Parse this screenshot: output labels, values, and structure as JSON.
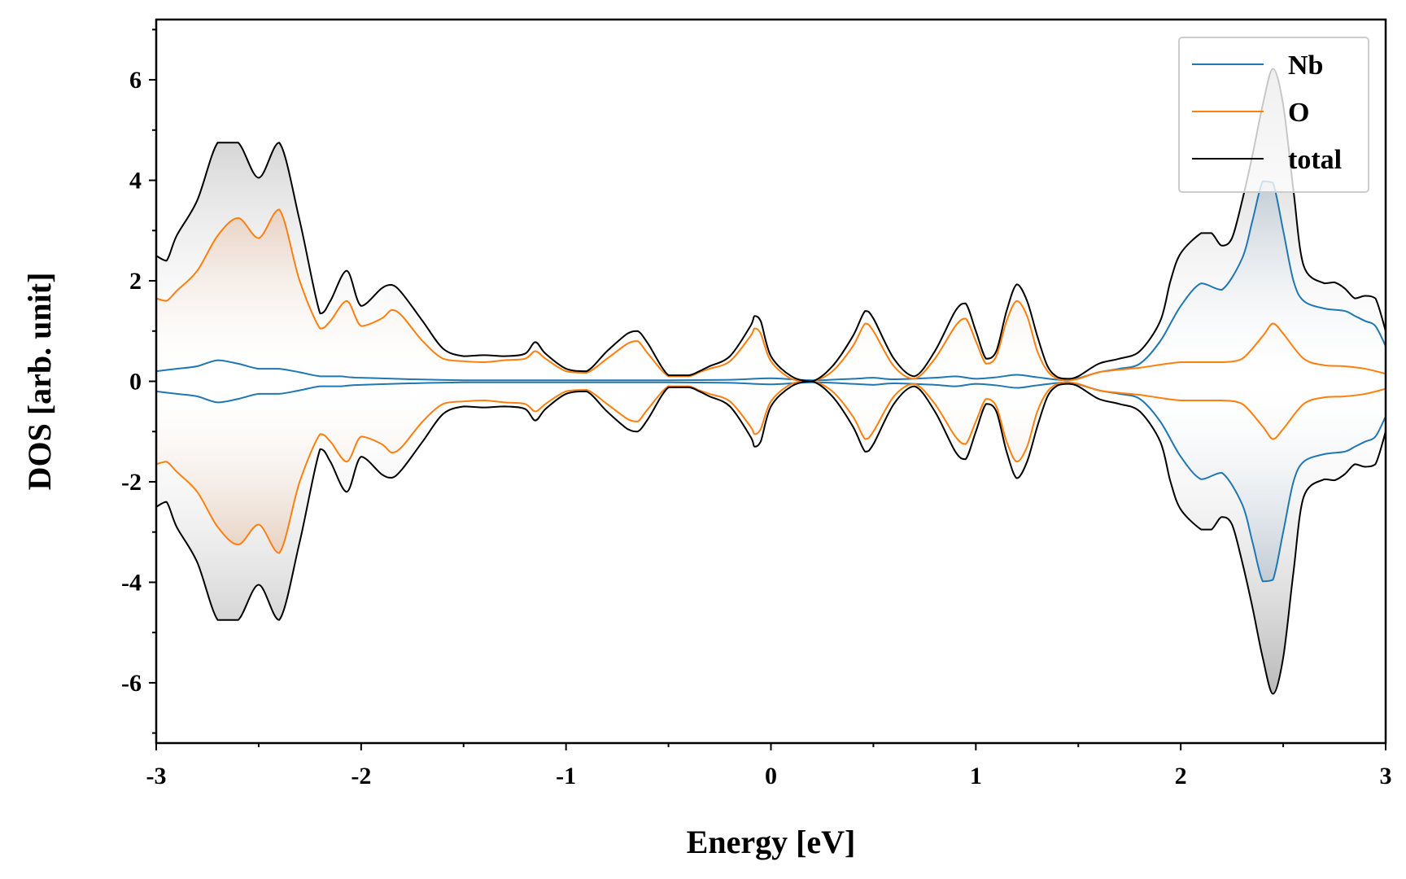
{
  "chart_data": {
    "type": "area",
    "xlabel": "Energy [eV]",
    "ylabel": "DOS [arb. unit]",
    "xlim": [
      -3,
      3
    ],
    "ylim": [
      -7.2,
      7.2
    ],
    "x_ticks": [
      -3,
      -2,
      -1,
      0,
      1,
      2,
      3
    ],
    "x_tick_labels": [
      "-3",
      "-2",
      "-1",
      "0",
      "1",
      "2",
      "3"
    ],
    "y_ticks": [
      -6,
      -4,
      -2,
      0,
      2,
      4,
      6
    ],
    "y_tick_labels": [
      "-6",
      "-4",
      "-2",
      "0",
      "2",
      "4",
      "6"
    ],
    "grid": false,
    "legend": {
      "position": "top-right",
      "entries": [
        "Nb",
        "O",
        "total"
      ]
    },
    "symmetric": true,
    "series": [
      {
        "name": "Nb",
        "color": "#1f77b4",
        "fill_color": "#4a6f8f",
        "x": [
          -3.0,
          -2.9,
          -2.8,
          -2.7,
          -2.6,
          -2.5,
          -2.4,
          -2.3,
          -2.2,
          -2.1,
          -2.0,
          -1.5,
          -1.0,
          -0.5,
          -0.2,
          0.0,
          0.2,
          0.4,
          0.5,
          0.6,
          0.8,
          0.9,
          1.0,
          1.1,
          1.2,
          1.3,
          1.45,
          1.6,
          1.7,
          1.8,
          1.9,
          2.0,
          2.1,
          2.2,
          2.3,
          2.35,
          2.4,
          2.45,
          2.5,
          2.55,
          2.6,
          2.7,
          2.8,
          2.85,
          2.9,
          2.95,
          3.0
        ],
        "values": [
          0.2,
          0.25,
          0.3,
          0.42,
          0.35,
          0.25,
          0.25,
          0.18,
          0.1,
          0.1,
          0.07,
          0.02,
          0.02,
          0.02,
          0.03,
          0.06,
          0.02,
          0.05,
          0.07,
          0.04,
          0.07,
          0.1,
          0.05,
          0.08,
          0.13,
          0.08,
          0.02,
          0.18,
          0.25,
          0.35,
          0.8,
          1.5,
          1.95,
          1.82,
          2.45,
          3.2,
          3.98,
          3.95,
          3.0,
          2.0,
          1.6,
          1.45,
          1.4,
          1.3,
          1.2,
          1.1,
          0.7
        ]
      },
      {
        "name": "O",
        "color": "#ff7f0e",
        "fill_color": "#c8651e",
        "x": [
          -3.0,
          -2.95,
          -2.9,
          -2.8,
          -2.7,
          -2.6,
          -2.5,
          -2.4,
          -2.3,
          -2.2,
          -2.15,
          -2.07,
          -2.0,
          -1.9,
          -1.85,
          -1.8,
          -1.7,
          -1.6,
          -1.5,
          -1.4,
          -1.3,
          -1.2,
          -1.15,
          -1.1,
          -1.0,
          -0.9,
          -0.8,
          -0.7,
          -0.65,
          -0.6,
          -0.5,
          -0.4,
          -0.35,
          -0.3,
          -0.2,
          -0.1,
          -0.08,
          -0.05,
          0.0,
          0.1,
          0.2,
          0.3,
          0.4,
          0.46,
          0.5,
          0.6,
          0.7,
          0.8,
          0.9,
          0.95,
          1.0,
          1.05,
          1.1,
          1.15,
          1.2,
          1.25,
          1.3,
          1.35,
          1.4,
          1.45,
          1.5,
          1.6,
          1.7,
          1.8,
          1.9,
          2.0,
          2.1,
          2.2,
          2.3,
          2.4,
          2.45,
          2.5,
          2.6,
          2.7,
          2.8,
          2.9,
          3.0
        ],
        "values": [
          1.65,
          1.6,
          1.8,
          2.2,
          2.9,
          3.25,
          2.85,
          3.42,
          2.0,
          1.05,
          1.2,
          1.6,
          1.1,
          1.25,
          1.42,
          1.3,
          0.8,
          0.45,
          0.4,
          0.38,
          0.42,
          0.45,
          0.6,
          0.45,
          0.2,
          0.17,
          0.45,
          0.75,
          0.8,
          0.55,
          0.1,
          0.1,
          0.18,
          0.25,
          0.4,
          0.9,
          1.05,
          0.95,
          0.4,
          0.05,
          0.0,
          0.2,
          0.7,
          1.15,
          1.0,
          0.3,
          0.05,
          0.45,
          1.1,
          1.25,
          0.8,
          0.35,
          0.5,
          1.2,
          1.6,
          1.3,
          0.6,
          0.2,
          0.05,
          0.02,
          0.05,
          0.18,
          0.23,
          0.27,
          0.33,
          0.38,
          0.38,
          0.38,
          0.45,
          0.9,
          1.15,
          0.95,
          0.45,
          0.32,
          0.3,
          0.25,
          0.15
        ]
      },
      {
        "name": "total",
        "color": "#000000",
        "fill_color": "#8c8c8c",
        "x": [
          -3.0,
          -2.95,
          -2.9,
          -2.8,
          -2.7,
          -2.6,
          -2.5,
          -2.4,
          -2.3,
          -2.2,
          -2.15,
          -2.07,
          -2.0,
          -1.9,
          -1.85,
          -1.8,
          -1.7,
          -1.6,
          -1.5,
          -1.4,
          -1.3,
          -1.2,
          -1.15,
          -1.1,
          -1.0,
          -0.9,
          -0.8,
          -0.7,
          -0.65,
          -0.6,
          -0.5,
          -0.4,
          -0.35,
          -0.3,
          -0.2,
          -0.1,
          -0.08,
          -0.05,
          0.0,
          0.1,
          0.2,
          0.3,
          0.4,
          0.46,
          0.5,
          0.6,
          0.7,
          0.8,
          0.9,
          0.95,
          1.0,
          1.05,
          1.1,
          1.15,
          1.2,
          1.25,
          1.3,
          1.35,
          1.4,
          1.45,
          1.5,
          1.6,
          1.7,
          1.8,
          1.9,
          1.95,
          2.0,
          2.1,
          2.15,
          2.2,
          2.25,
          2.3,
          2.35,
          2.4,
          2.45,
          2.5,
          2.55,
          2.6,
          2.7,
          2.75,
          2.8,
          2.85,
          2.9,
          2.95,
          3.0
        ],
        "values": [
          2.5,
          2.4,
          2.9,
          3.6,
          4.75,
          4.75,
          4.05,
          4.75,
          3.2,
          1.35,
          1.6,
          2.2,
          1.5,
          1.85,
          1.92,
          1.75,
          1.2,
          0.65,
          0.5,
          0.52,
          0.5,
          0.55,
          0.78,
          0.55,
          0.25,
          0.2,
          0.6,
          0.95,
          1.0,
          0.75,
          0.12,
          0.12,
          0.2,
          0.3,
          0.5,
          1.1,
          1.3,
          1.2,
          0.5,
          0.1,
          0.0,
          0.3,
          0.9,
          1.4,
          1.25,
          0.45,
          0.1,
          0.6,
          1.4,
          1.55,
          1.0,
          0.45,
          0.6,
          1.4,
          1.93,
          1.6,
          0.9,
          0.3,
          0.08,
          0.05,
          0.1,
          0.35,
          0.45,
          0.6,
          1.2,
          2.0,
          2.55,
          2.95,
          2.95,
          2.7,
          2.85,
          3.6,
          4.5,
          5.5,
          6.22,
          5.5,
          3.8,
          2.3,
          1.95,
          1.97,
          1.85,
          1.65,
          1.7,
          1.65,
          1.0
        ]
      }
    ]
  }
}
